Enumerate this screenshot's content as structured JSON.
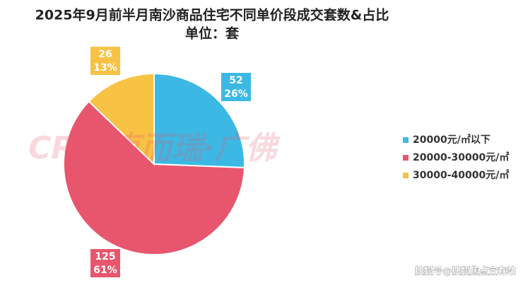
{
  "title": "2025年9月前半月南沙商品住宅不同单价段成交套数&占比",
  "subtitle": "单位：套",
  "watermark": "CRIC克而瑞·广佛",
  "source": "搜狐号@搜狐焦点宜春站",
  "chart_data": {
    "type": "pie",
    "categories": [
      "20000元/㎡以下",
      "20000-30000元/㎡",
      "30000-40000元/㎡"
    ],
    "series": [
      {
        "name": "成交套数",
        "values": [
          52,
          125,
          26
        ],
        "colors": [
          "#3bb9e4",
          "#e8566e",
          "#f8c245"
        ]
      }
    ],
    "percent_labels": [
      "26%",
      "61%",
      "13%"
    ],
    "legend": "right"
  }
}
